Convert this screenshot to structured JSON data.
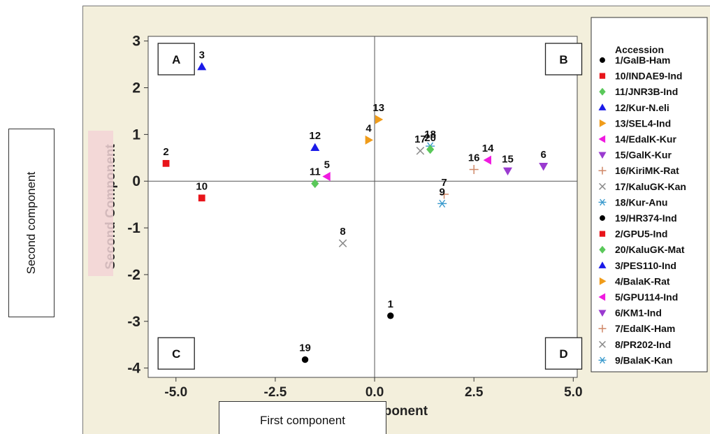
{
  "overlay_labels": {
    "ylabel": "Second component",
    "xlabel": "First component"
  },
  "chart_data": {
    "type": "scatter",
    "xlabel": "First Component",
    "ylabel": "Second Component",
    "xlim": [
      -5.7,
      5.1
    ],
    "ylim": [
      -4.2,
      3.1
    ],
    "xticks": [
      "-5.0",
      "-2.5",
      "0.0",
      "2.5",
      "5.0"
    ],
    "yticks": [
      "3",
      "2",
      "1",
      "0",
      "-1",
      "-2",
      "-3",
      "-4"
    ],
    "quadrants": [
      "A",
      "B",
      "C",
      "D"
    ],
    "legend_title": "Accession",
    "legend_position": "right",
    "series": [
      {
        "name": "1/GalB-Ham",
        "marker": "circle",
        "color": "#000000",
        "x": 0.4,
        "y": -2.88,
        "label": "1"
      },
      {
        "name": "10/INDAE9-Ind",
        "marker": "square",
        "color": "#e8141a",
        "x": -4.35,
        "y": -0.36,
        "label": "10"
      },
      {
        "name": "11/JNR3B-Ind",
        "marker": "diamond",
        "color": "#5ac85a",
        "x": -1.5,
        "y": -0.05,
        "label": "11"
      },
      {
        "name": "12/Kur-N.eli",
        "marker": "triangle-up",
        "color": "#1a1ae8",
        "x": -1.5,
        "y": 0.72,
        "label": "12"
      },
      {
        "name": "13/SEL4-Ind",
        "marker": "triangle-right",
        "color": "#f09c1a",
        "x": 0.1,
        "y": 1.32,
        "label": "13"
      },
      {
        "name": "14/EdalK-Kur",
        "marker": "triangle-left",
        "color": "#f01ae0",
        "x": 2.85,
        "y": 0.45,
        "label": "14"
      },
      {
        "name": "15/GalK-Kur",
        "marker": "triangle-down",
        "color": "#9a3ad0",
        "x": 3.35,
        "y": 0.22,
        "label": "15"
      },
      {
        "name": "16/KiriMK-Rat",
        "marker": "plus",
        "color": "#d08868",
        "x": 2.5,
        "y": 0.25,
        "label": "16"
      },
      {
        "name": "17/KaluGK-Kan",
        "marker": "cross",
        "color": "#8a8a8a",
        "x": 1.15,
        "y": 0.65,
        "label": "17"
      },
      {
        "name": "18/Kur-Anu",
        "marker": "asterisk",
        "color": "#3a9acd",
        "x": 1.4,
        "y": 0.75,
        "label": "18"
      },
      {
        "name": "19/HR374-Ind",
        "marker": "circle",
        "color": "#000000",
        "x": -1.75,
        "y": -3.82,
        "label": "19"
      },
      {
        "name": "2/GPU5-Ind",
        "marker": "square",
        "color": "#e8141a",
        "x": -5.25,
        "y": 0.38,
        "label": "2"
      },
      {
        "name": "20/KaluGK-Mat",
        "marker": "diamond",
        "color": "#5ac85a",
        "x": 1.4,
        "y": 0.68,
        "label": "20"
      },
      {
        "name": "3/PES110-Ind",
        "marker": "triangle-up",
        "color": "#1a1ae8",
        "x": -4.35,
        "y": 2.45,
        "label": "3"
      },
      {
        "name": "4/BalaK-Rat",
        "marker": "triangle-right",
        "color": "#f09c1a",
        "x": -0.15,
        "y": 0.88,
        "label": "4"
      },
      {
        "name": "5/GPU114-Ind",
        "marker": "triangle-left",
        "color": "#f01ae0",
        "x": -1.2,
        "y": 0.1,
        "label": "5"
      },
      {
        "name": "6/KM1-Ind",
        "marker": "triangle-down",
        "color": "#9a3ad0",
        "x": 4.25,
        "y": 0.32,
        "label": "6"
      },
      {
        "name": "7/EdalK-Ham",
        "marker": "plus",
        "color": "#d08868",
        "x": 1.75,
        "y": -0.28,
        "label": "7"
      },
      {
        "name": "8/PR202-Ind",
        "marker": "cross",
        "color": "#8a8a8a",
        "x": -0.8,
        "y": -1.33,
        "label": "8"
      },
      {
        "name": "9/BalaK-Kan",
        "marker": "asterisk",
        "color": "#3a9acd",
        "x": 1.7,
        "y": -0.48,
        "label": "9"
      }
    ]
  }
}
